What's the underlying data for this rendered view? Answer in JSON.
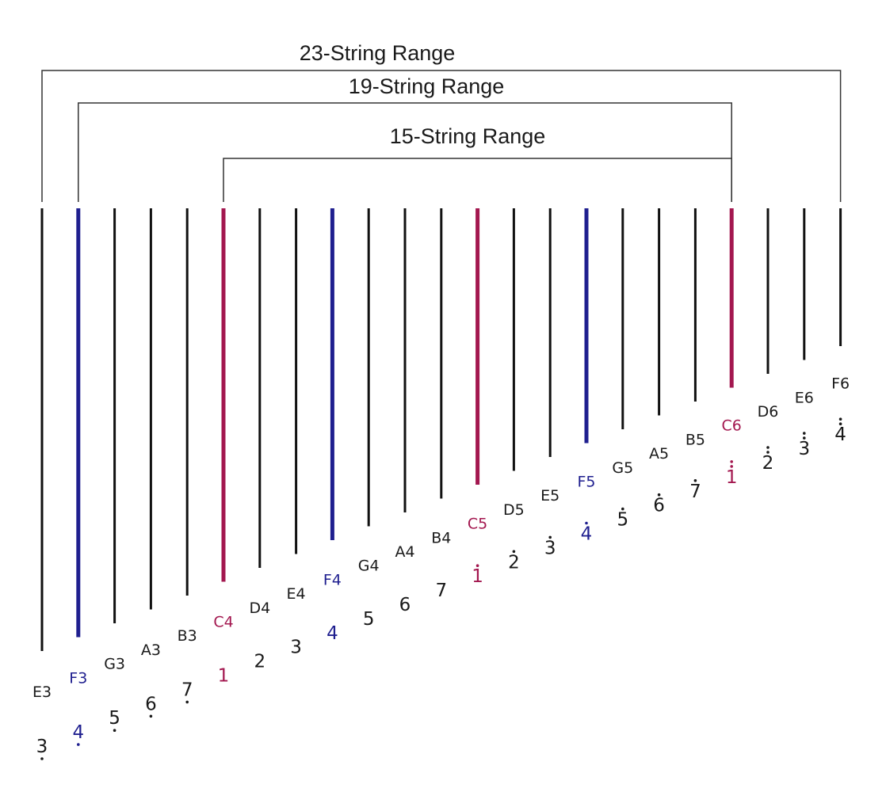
{
  "colors": {
    "black": "#111111",
    "blue": "#1f1f8f",
    "red": "#a3174f"
  },
  "ranges": [
    {
      "label": "23-String Range",
      "from": 0,
      "to": 22
    },
    {
      "label": "19-String Range",
      "from": 1,
      "to": 19
    },
    {
      "label": "15-String Range",
      "from": 5,
      "to": 19
    }
  ],
  "strings": [
    {
      "note": "E3",
      "jianpu": "3",
      "dots_below": 1,
      "dots_above": 0,
      "color": "black"
    },
    {
      "note": "F3",
      "jianpu": "4",
      "dots_below": 1,
      "dots_above": 0,
      "color": "blue"
    },
    {
      "note": "G3",
      "jianpu": "5",
      "dots_below": 1,
      "dots_above": 0,
      "color": "black"
    },
    {
      "note": "A3",
      "jianpu": "6",
      "dots_below": 1,
      "dots_above": 0,
      "color": "black"
    },
    {
      "note": "B3",
      "jianpu": "7",
      "dots_below": 1,
      "dots_above": 0,
      "color": "black"
    },
    {
      "note": "C4",
      "jianpu": "1",
      "dots_below": 0,
      "dots_above": 0,
      "color": "red"
    },
    {
      "note": "D4",
      "jianpu": "2",
      "dots_below": 0,
      "dots_above": 0,
      "color": "black"
    },
    {
      "note": "E4",
      "jianpu": "3",
      "dots_below": 0,
      "dots_above": 0,
      "color": "black"
    },
    {
      "note": "F4",
      "jianpu": "4",
      "dots_below": 0,
      "dots_above": 0,
      "color": "blue"
    },
    {
      "note": "G4",
      "jianpu": "5",
      "dots_below": 0,
      "dots_above": 0,
      "color": "black"
    },
    {
      "note": "A4",
      "jianpu": "6",
      "dots_below": 0,
      "dots_above": 0,
      "color": "black"
    },
    {
      "note": "B4",
      "jianpu": "7",
      "dots_below": 0,
      "dots_above": 0,
      "color": "black"
    },
    {
      "note": "C5",
      "jianpu": "1",
      "dots_below": 0,
      "dots_above": 1,
      "color": "red"
    },
    {
      "note": "D5",
      "jianpu": "2",
      "dots_below": 0,
      "dots_above": 1,
      "color": "black"
    },
    {
      "note": "E5",
      "jianpu": "3",
      "dots_below": 0,
      "dots_above": 1,
      "color": "black"
    },
    {
      "note": "F5",
      "jianpu": "4",
      "dots_below": 0,
      "dots_above": 1,
      "color": "blue"
    },
    {
      "note": "G5",
      "jianpu": "5",
      "dots_below": 0,
      "dots_above": 1,
      "color": "black"
    },
    {
      "note": "A5",
      "jianpu": "6",
      "dots_below": 0,
      "dots_above": 1,
      "color": "black"
    },
    {
      "note": "B5",
      "jianpu": "7",
      "dots_below": 0,
      "dots_above": 1,
      "color": "black"
    },
    {
      "note": "C6",
      "jianpu": "1",
      "dots_below": 0,
      "dots_above": 2,
      "color": "red"
    },
    {
      "note": "D6",
      "jianpu": "2",
      "dots_below": 0,
      "dots_above": 2,
      "color": "black"
    },
    {
      "note": "E6",
      "jianpu": "3",
      "dots_below": 0,
      "dots_above": 2,
      "color": "black"
    },
    {
      "note": "F6",
      "jianpu": "4",
      "dots_below": 0,
      "dots_above": 2,
      "color": "black"
    }
  ]
}
